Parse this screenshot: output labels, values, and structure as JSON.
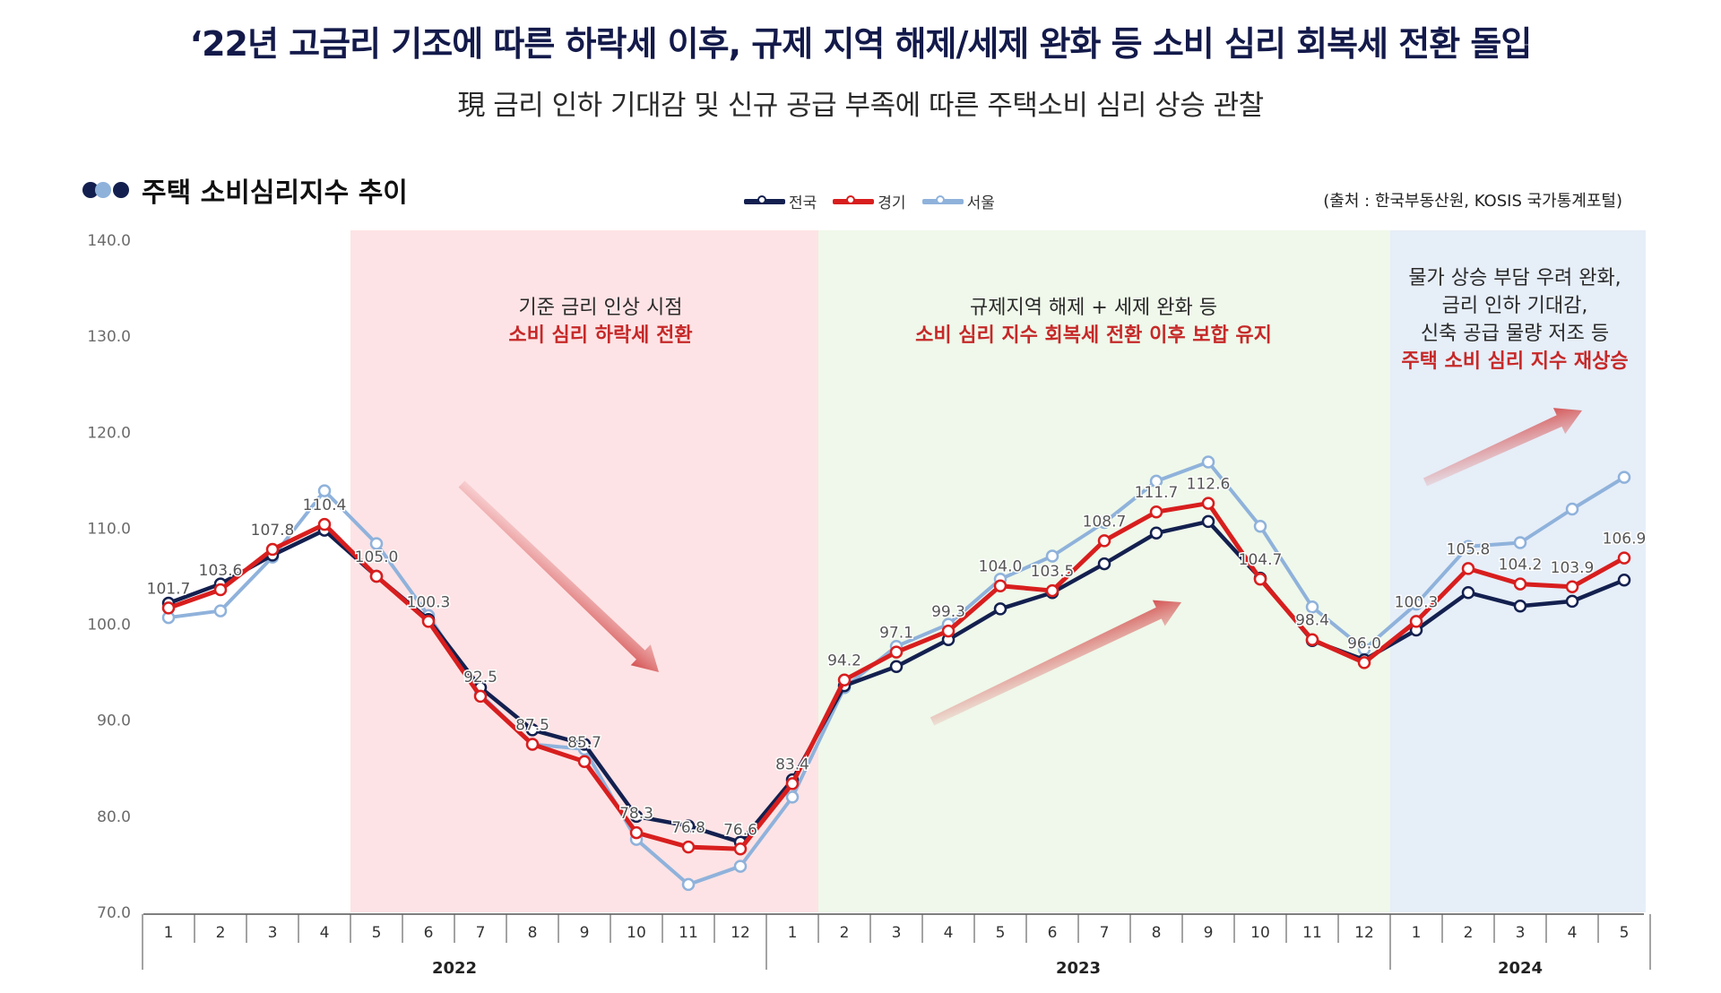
{
  "header": {
    "title": "‘22년 고금리 기조에 따른 하락세 이후, 규제 지역 해제/세제 완화 등 소비 심리 회복세 전환 돌입",
    "subtitle": "現 금리 인하 기대감 및 신규 공급 부족에 따른 주택소비 심리 상승 관찰"
  },
  "chart_title": "주택 소비심리지수 추이",
  "source": "(출처 : 한국부동산원, KOSIS 국가통계포털)",
  "colors": {
    "national": "#13204f",
    "gyeonggi": "#d81e1e",
    "seoul": "#8fb2db",
    "band_2022": "#fde3e5",
    "band_2023": "#eff8ea",
    "band_2024": "#e6eef8",
    "dots": [
      "#13204f",
      "#8fb2db",
      "#13204f"
    ]
  },
  "periods": [
    {
      "line1": "기준 금리 인상 시점",
      "line2": "소비 심리 하락세 전환"
    },
    {
      "line1": "규제지역 해제 + 세제 완화 등",
      "line2": "소비 심리 지수 회복세 전환 이후 보합 유지"
    },
    {
      "line1": "물가 상승 부담 우려 완화,",
      "line2": "금리 인하 기대감,",
      "line3": "신축 공급 물량 저조 등",
      "line4": "주택 소비 심리 지수 재상승"
    }
  ],
  "chart_data": {
    "type": "line",
    "x": [
      "1",
      "2",
      "3",
      "4",
      "5",
      "6",
      "7",
      "8",
      "9",
      "10",
      "11",
      "12",
      "1",
      "2",
      "3",
      "4",
      "5",
      "6",
      "7",
      "8",
      "9",
      "10",
      "11",
      "12",
      "1",
      "2",
      "3",
      "4",
      "5"
    ],
    "groups": [
      {
        "label": "2022",
        "start": 0,
        "end": 11
      },
      {
        "label": "2023",
        "start": 12,
        "end": 23
      },
      {
        "label": "2024",
        "start": 24,
        "end": 28
      }
    ],
    "series": [
      {
        "name": "전국",
        "values": [
          102.2,
          104.2,
          107.2,
          109.8,
          105.0,
          100.5,
          93.4,
          89.0,
          87.5,
          80.0,
          79.0,
          77.3,
          83.8,
          93.6,
          95.6,
          98.4,
          101.6,
          103.3,
          106.3,
          109.5,
          110.7,
          104.8,
          98.3,
          96.3,
          99.4,
          103.3,
          101.9,
          102.4,
          104.6
        ]
      },
      {
        "name": "경기",
        "values": [
          101.7,
          103.6,
          107.8,
          110.4,
          105.0,
          100.3,
          92.5,
          87.5,
          85.7,
          78.3,
          76.8,
          76.6,
          83.4,
          94.2,
          97.1,
          99.3,
          104.0,
          103.5,
          108.7,
          111.7,
          112.6,
          104.7,
          98.4,
          96.0,
          100.3,
          105.8,
          104.2,
          103.9,
          106.9
        ]
      },
      {
        "name": "서울",
        "values": [
          100.7,
          101.4,
          107.0,
          113.9,
          108.4,
          100.9,
          92.7,
          87.5,
          87.0,
          77.6,
          72.9,
          74.8,
          82.0,
          93.4,
          97.7,
          100.0,
          104.7,
          107.1,
          110.6,
          114.9,
          116.9,
          110.2,
          101.8,
          97.4,
          102.1,
          108.1,
          108.5,
          112.0,
          115.3
        ]
      }
    ],
    "value_labels": {
      "series": "경기",
      "values": [
        "101.7",
        "103.6",
        "107.8",
        "110.4",
        "105.0",
        "100.3",
        "92.5",
        "87.5",
        "85.7",
        "78.3",
        "76.8",
        "76.6",
        "83.4",
        "94.2",
        "97.1",
        "99.3",
        "104.0",
        "103.5",
        "108.7",
        "111.7",
        "112.6",
        "104.7",
        "98.4",
        "96.0",
        "100.3",
        "105.8",
        "104.2",
        "103.9",
        "106.9"
      ]
    },
    "y_ticks": [
      "140.0",
      "130.0",
      "120.0",
      "110.0",
      "100.0",
      "90.0",
      "80.0",
      "70.0"
    ],
    "ylim": [
      70,
      140
    ],
    "xlabel": "",
    "ylabel": "",
    "legend": "top-center",
    "grid": false
  }
}
